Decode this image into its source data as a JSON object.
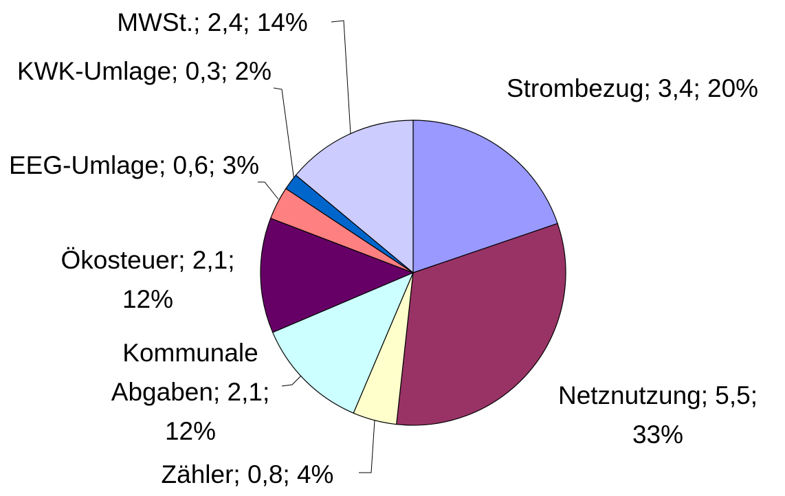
{
  "chart_data": {
    "type": "pie",
    "categories": [
      "Strombezug",
      "Netznutzung",
      "Zähler",
      "Kommunale Abgaben",
      "Ökosteuer",
      "EEG-Umlage",
      "KWK-Umlage",
      "MWSt."
    ],
    "values": [
      3.4,
      5.5,
      0.8,
      2.1,
      2.1,
      0.6,
      0.3,
      2.4
    ],
    "value_labels": [
      "3,4",
      "5,5",
      "0,8",
      "2,1",
      "2,1",
      "0,6",
      "0,3",
      "2,4"
    ],
    "percent_labels": [
      "20%",
      "33%",
      "4%",
      "12%",
      "12%",
      "3%",
      "2%",
      "14%"
    ],
    "label_separator": "; ",
    "colors": [
      "#9999ff",
      "#993366",
      "#ffffcc",
      "#ccffff",
      "#660066",
      "#ff8080",
      "#0066cc",
      "#ccccff"
    ]
  }
}
